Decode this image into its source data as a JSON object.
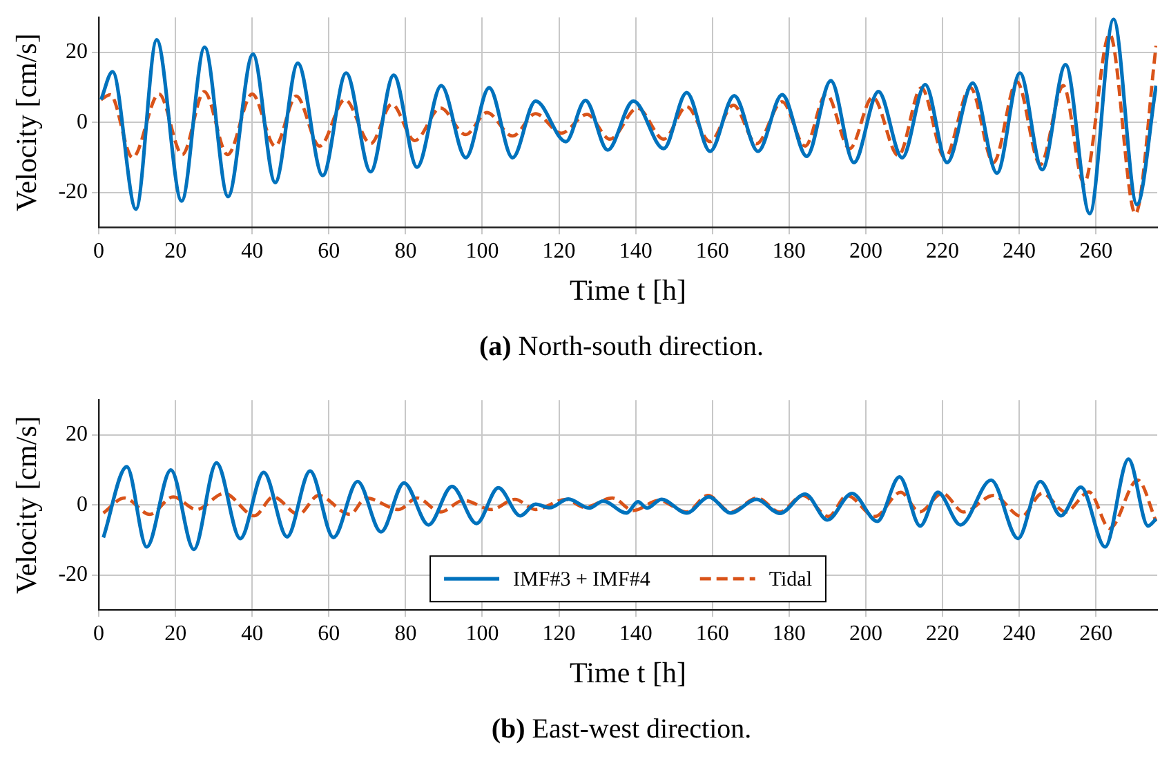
{
  "chart_data": [
    {
      "type": "line",
      "xlabel": "Time t [h]",
      "ylabel": "Velocity [cm/s]",
      "xlim": [
        0,
        276
      ],
      "xticks": [
        0,
        20,
        40,
        60,
        80,
        100,
        120,
        140,
        160,
        180,
        200,
        220,
        240,
        260
      ],
      "ylim": [
        -30,
        30
      ],
      "yticks": [
        -20,
        0,
        20
      ],
      "grid": true,
      "legend": false,
      "marker": "none",
      "annotations": [
        "(a) North-south direction."
      ],
      "series": [
        {
          "color": "#0072bd",
          "line_style": "solid",
          "x": [
            0.6,
            3.6,
            9.7,
            15.1,
            21.6,
            27.6,
            33.7,
            40.2,
            46,
            51.9,
            58.4,
            64.5,
            70.9,
            76.9,
            83,
            89.3,
            95.7,
            101.8,
            107.9,
            113.9,
            121.8,
            126.9,
            132.7,
            139.4,
            147.3,
            153.3,
            159.4,
            165.7,
            171.9,
            178.2,
            184.6,
            190.9,
            196.9,
            203.3,
            209.5,
            215.5,
            221.2,
            227.9,
            234.2,
            240.2,
            246,
            252.1,
            258.4,
            264.6,
            270.7,
            275.7
          ],
          "values": [
            6.5,
            14.5,
            -24.8,
            23.6,
            -22.5,
            21.5,
            -21.2,
            19.5,
            -17.2,
            16.9,
            -15.2,
            14.1,
            -14.1,
            13.5,
            -12.8,
            10.5,
            -10.1,
            9.9,
            -10.1,
            6.1,
            -5.5,
            6.3,
            -7.9,
            6.1,
            -7.5,
            8.5,
            -8.3,
            7.6,
            -8.3,
            7.9,
            -9.7,
            11.9,
            -11.5,
            8.8,
            -10.1,
            10.8,
            -11.5,
            11.2,
            -14.5,
            14.1,
            -13.5,
            16.5,
            -26.1,
            29.5,
            -23.5,
            10.5
          ]
        },
        {
          "color": "#d95319",
          "line_style": "dashed",
          "x": [
            0.6,
            3,
            8.8,
            15.7,
            21.8,
            27.5,
            33.6,
            40,
            46,
            51.5,
            57.6,
            64.2,
            70.9,
            76.4,
            82.4,
            89.1,
            95.7,
            101.2,
            107.9,
            113.9,
            120.6,
            127.3,
            133.3,
            140.5,
            147.3,
            153.3,
            159.4,
            165.5,
            171.5,
            178.2,
            184.2,
            189.7,
            195.8,
            201.8,
            208.5,
            214.5,
            220.6,
            227.3,
            233.3,
            239.4,
            245.5,
            251.5,
            256.9,
            263.6,
            270.3,
            275.7
          ],
          "values": [
            6.5,
            7.9,
            -10.1,
            8.1,
            -9.2,
            8.8,
            -9.2,
            8.1,
            -6.8,
            7.5,
            -6.8,
            6.5,
            -6.1,
            5.2,
            -5.2,
            4.1,
            -3.5,
            2.8,
            -3.9,
            2.5,
            -3.1,
            2.3,
            -4.8,
            4.1,
            -4.8,
            4.5,
            -5.5,
            4.9,
            -6.1,
            5.9,
            -6.8,
            8.1,
            -7.5,
            7.2,
            -9.5,
            9.9,
            -10.1,
            9.9,
            -11.5,
            11.6,
            -12.1,
            10.5,
            -17.5,
            25.2,
            -26.1,
            21.9
          ]
        }
      ]
    },
    {
      "type": "line",
      "xlabel": "Time t [h]",
      "ylabel": "Velocity [cm/s]",
      "xlim": [
        0,
        276
      ],
      "xticks": [
        0,
        20,
        40,
        60,
        80,
        100,
        120,
        140,
        160,
        180,
        200,
        220,
        240,
        260
      ],
      "ylim": [
        -30,
        30
      ],
      "yticks": [
        -20,
        0,
        20
      ],
      "grid": true,
      "legend": "bottom",
      "marker": "none",
      "annotations": [
        "(b) East-west direction."
      ],
      "series": [
        {
          "name": "IMF#3 + IMF#4",
          "color": "#0072bd",
          "line_style": "solid",
          "x": [
            1.2,
            7.3,
            12.5,
            18.8,
            24.8,
            30.7,
            36.9,
            43,
            49.1,
            55.1,
            61.2,
            67.5,
            73.6,
            79.6,
            86,
            92.1,
            98.5,
            104.2,
            109.9,
            113.9,
            117.6,
            122.4,
            127.9,
            131.5,
            137.6,
            140.6,
            143,
            146.7,
            153.3,
            159.1,
            164.8,
            171.5,
            177.6,
            184.2,
            190,
            196.4,
            203,
            208.8,
            214.2,
            218.8,
            224.7,
            232.7,
            239.7,
            245.5,
            250.9,
            256.1,
            262.4,
            268.5,
            273.6,
            275.7
          ],
          "values": [
            -9.3,
            10.9,
            -12,
            10,
            -12.7,
            12,
            -9.6,
            9.3,
            -9.1,
            9.7,
            -9.3,
            6.7,
            -7.7,
            6.3,
            -5.7,
            5.3,
            -5.3,
            4.9,
            -3.1,
            0.2,
            -0.8,
            1.7,
            -0.9,
            1.1,
            -2.3,
            0.9,
            -0.9,
            1.6,
            -2.3,
            2.3,
            -2.3,
            1.6,
            -2.4,
            3.1,
            -4.3,
            3.3,
            -4.7,
            8,
            -6,
            3.6,
            -5.7,
            7.1,
            -9.6,
            6.7,
            -3.1,
            5.1,
            -12,
            13.1,
            -6,
            -4
          ]
        },
        {
          "name": "Tidal",
          "color": "#d95319",
          "line_style": "dashed",
          "x": [
            1.2,
            6.7,
            13.3,
            19.4,
            25.5,
            32.7,
            40.6,
            45.5,
            52.1,
            57.3,
            65.5,
            69.7,
            78.2,
            83,
            89.1,
            95.1,
            102.4,
            108.5,
            113.9,
            121.8,
            126.7,
            133.9,
            139.4,
            146,
            153.3,
            158.8,
            164.8,
            171.7,
            177.6,
            183.6,
            190.3,
            195.1,
            202.4,
            209.1,
            214,
            220,
            225.5,
            233.3,
            240.6,
            246,
            252.1,
            258.2,
            263.6,
            270.9,
            275.7
          ],
          "values": [
            -2.3,
            2,
            -2.7,
            2.3,
            -1.3,
            3.3,
            -3.1,
            2.3,
            -2.7,
            2.7,
            -2.7,
            2,
            -1.3,
            2,
            -2,
            1.3,
            -1.3,
            1.6,
            -1.3,
            1.6,
            -0.7,
            2,
            -1.6,
            1.3,
            -2,
            2.7,
            -2,
            2,
            -2,
            2.7,
            -3.3,
            2.7,
            -3.3,
            3.6,
            -2,
            3.3,
            -2,
            2.7,
            -3.3,
            3.3,
            -2,
            3.7,
            -6.7,
            7.1,
            -4.7
          ]
        }
      ]
    }
  ]
}
